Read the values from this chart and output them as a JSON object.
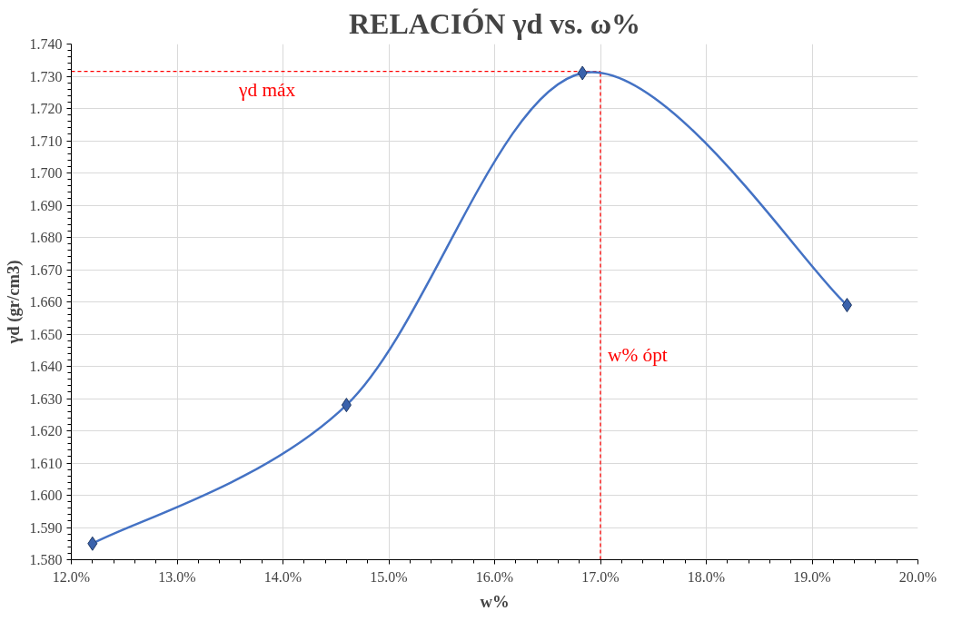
{
  "chart_data": {
    "type": "line",
    "title": "RELACIÓN γd vs. ω%",
    "xlabel": "w%",
    "ylabel": "γd (gr/cm3)",
    "x": [
      12.2,
      14.6,
      16.83,
      19.33
    ],
    "series": [
      {
        "color": "#4472c4",
        "values": [
          1.585,
          1.628,
          1.731,
          1.659
        ]
      }
    ],
    "marker": "diamond",
    "grid": true,
    "xlim": [
      12,
      20
    ],
    "ylim": [
      1.58,
      1.74
    ],
    "xticks": [
      {
        "value": 12,
        "label": "12.0%"
      },
      {
        "value": 13,
        "label": "13.0%"
      },
      {
        "value": 14,
        "label": "14.0%"
      },
      {
        "value": 15,
        "label": "15.0%"
      },
      {
        "value": 16,
        "label": "16.0%"
      },
      {
        "value": 17,
        "label": "17.0%"
      },
      {
        "value": 18,
        "label": "18.0%"
      },
      {
        "value": 19,
        "label": "19.0%"
      },
      {
        "value": 20,
        "label": "20.0%"
      }
    ],
    "yticks": [
      {
        "value": 1.58,
        "label": "1.580"
      },
      {
        "value": 1.59,
        "label": "1.590"
      },
      {
        "value": 1.6,
        "label": "1.600"
      },
      {
        "value": 1.61,
        "label": "1.610"
      },
      {
        "value": 1.62,
        "label": "1.620"
      },
      {
        "value": 1.63,
        "label": "1.630"
      },
      {
        "value": 1.64,
        "label": "1.640"
      },
      {
        "value": 1.65,
        "label": "1.650"
      },
      {
        "value": 1.66,
        "label": "1.660"
      },
      {
        "value": 1.67,
        "label": "1.670"
      },
      {
        "value": 1.68,
        "label": "1.680"
      },
      {
        "value": 1.69,
        "label": "1.690"
      },
      {
        "value": 1.7,
        "label": "1.700"
      },
      {
        "value": 1.71,
        "label": "1.710"
      },
      {
        "value": 1.72,
        "label": "1.720"
      },
      {
        "value": 1.73,
        "label": "1.730"
      },
      {
        "value": 1.74,
        "label": "1.740"
      }
    ],
    "ref_lines": [
      {
        "axis": "y",
        "value": 1.7315,
        "label": "γd máx",
        "color": "#ff0000",
        "line_style": "dashed"
      },
      {
        "axis": "x",
        "value": 17.0,
        "label": "w% ópt",
        "color": "#ff0000",
        "line_style": "dashed"
      }
    ]
  }
}
